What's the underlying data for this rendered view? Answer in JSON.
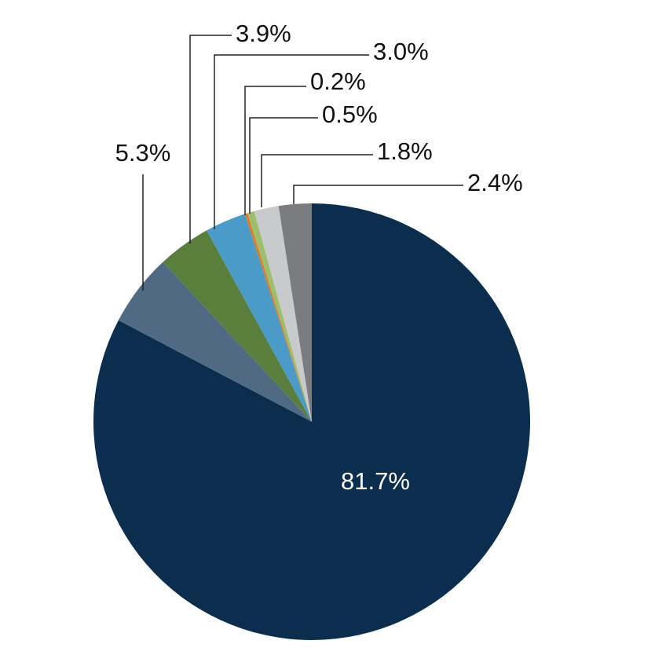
{
  "chart_data": {
    "type": "pie",
    "values": [
      81.7,
      5.3,
      3.9,
      3.0,
      0.2,
      0.5,
      1.8,
      2.4
    ],
    "value_labels": [
      "81.7%",
      "5.3%",
      "3.9%",
      "3.0%",
      "0.2%",
      "0.5%",
      "1.8%",
      "2.4%"
    ],
    "colors": [
      "#0b2e4f",
      "#4f6a82",
      "#5a7f3c",
      "#4a9bc7",
      "#e07b29",
      "#9bbf6b",
      "#c9cacc",
      "#7b7c80"
    ]
  }
}
